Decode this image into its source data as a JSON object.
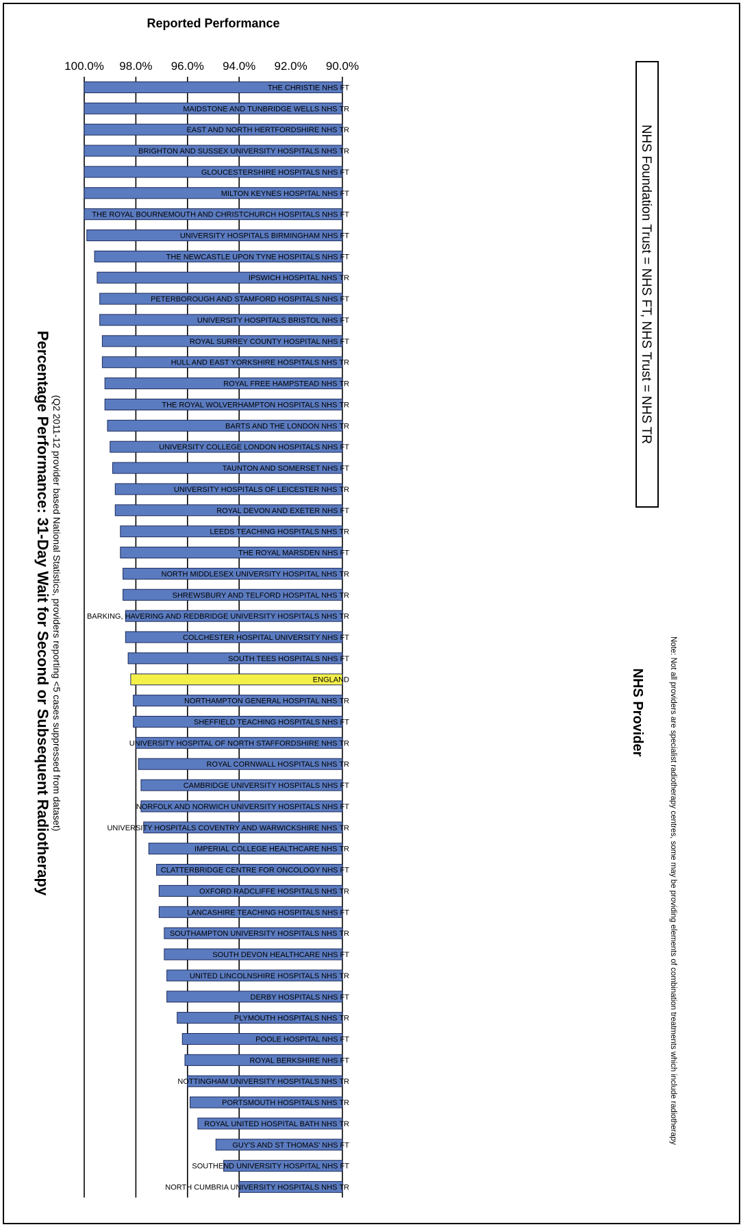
{
  "chart_data": {
    "type": "bar",
    "title": "Percentage Performance: 31-Day Wait for Second or Subsequent Radiotherapy",
    "subtitle": "(Q2 2011-12 provider based National Statistics, providers reporting <5 cases suppressed from dataset)",
    "xlabel": "NHS Provider",
    "ylabel": "Reported Performance",
    "ylim": [
      90,
      100
    ],
    "yticks": [
      "90.0%",
      "92.0%",
      "94.0%",
      "96.0%",
      "98.0%",
      "100.0%"
    ],
    "gridlines": [
      94,
      96,
      98,
      100
    ],
    "highlight_category": "ENGLAND",
    "colors": {
      "bar": "#5b7bc0",
      "highlight": "#f4f04a",
      "bar_edge": "#1b2a5a"
    },
    "categories": [
      "THE CHRISTIE NHS FT",
      "MAIDSTONE AND TUNBRIDGE WELLS NHS TR",
      "EAST AND NORTH HERTFORDSHIRE NHS TR",
      "BRIGHTON AND SUSSEX UNIVERSITY HOSPITALS NHS TR",
      "GLOUCESTERSHIRE HOSPITALS NHS FT",
      "MILTON KEYNES HOSPITAL NHS FT",
      "THE ROYAL BOURNEMOUTH AND CHRISTCHURCH HOSPITALS NHS FT",
      "UNIVERSITY HOSPITALS BIRMINGHAM NHS FT",
      "THE NEWCASTLE UPON TYNE HOSPITALS NHS FT",
      "IPSWICH HOSPITAL NHS TR",
      "PETERBOROUGH AND STAMFORD HOSPITALS NHS FT",
      "UNIVERSITY HOSPITALS BRISTOL NHS FT",
      "ROYAL SURREY COUNTY HOSPITAL NHS FT",
      "HULL AND EAST YORKSHIRE HOSPITALS NHS TR",
      "ROYAL FREE HAMPSTEAD NHS TR",
      "THE ROYAL WOLVERHAMPTON HOSPITALS NHS TR",
      "BARTS AND THE LONDON NHS TR",
      "UNIVERSITY COLLEGE LONDON HOSPITALS NHS FT",
      "TAUNTON AND SOMERSET NHS FT",
      "UNIVERSITY HOSPITALS OF LEICESTER NHS TR",
      "ROYAL DEVON AND EXETER NHS FT",
      "LEEDS TEACHING HOSPITALS NHS TR",
      "THE ROYAL MARSDEN NHS FT",
      "NORTH MIDDLESEX UNIVERSITY HOSPITAL NHS TR",
      "SHREWSBURY AND TELFORD HOSPITAL NHS TR",
      "BARKING, HAVERING AND REDBRIDGE UNIVERSITY HOSPITALS NHS TR",
      "COLCHESTER HOSPITAL UNIVERSITY NHS FT",
      "SOUTH TEES HOSPITALS NHS FT",
      "ENGLAND",
      "NORTHAMPTON GENERAL HOSPITAL NHS TR",
      "SHEFFIELD TEACHING HOSPITALS NHS FT",
      "UNIVERSITY HOSPITAL OF NORTH STAFFORDSHIRE NHS TR",
      "ROYAL CORNWALL HOSPITALS NHS TR",
      "CAMBRIDGE UNIVERSITY HOSPITALS NHS FT",
      "NORFOLK AND NORWICH UNIVERSITY HOSPITALS NHS FT",
      "UNIVERSITY HOSPITALS COVENTRY AND WARWICKSHIRE NHS TR",
      "IMPERIAL COLLEGE HEALTHCARE NHS TR",
      "CLATTERBRIDGE CENTRE FOR ONCOLOGY NHS FT",
      "OXFORD RADCLIFFE HOSPITALS NHS TR",
      "LANCASHIRE TEACHING HOSPITALS NHS FT",
      "SOUTHAMPTON UNIVERSITY HOSPITALS NHS TR",
      "SOUTH DEVON HEALTHCARE NHS FT",
      "UNITED LINCOLNSHIRE HOSPITALS NHS TR",
      "DERBY HOSPITALS NHS FT",
      "PLYMOUTH HOSPITALS NHS TR",
      "POOLE HOSPITAL NHS FT",
      "ROYAL BERKSHIRE NHS FT",
      "NOTTINGHAM UNIVERSITY HOSPITALS NHS TR",
      "PORTSMOUTH HOSPITALS NHS TR",
      "ROYAL UNITED HOSPITAL BATH NHS TR",
      "GUY'S AND ST THOMAS' NHS FT",
      "SOUTHEND UNIVERSITY HOSPITAL NHS FT",
      "NORTH CUMBRIA UNIVERSITY HOSPITALS NHS TR"
    ],
    "values": [
      100.0,
      100.0,
      100.0,
      100.0,
      100.0,
      100.0,
      100.0,
      99.9,
      99.6,
      99.5,
      99.4,
      99.4,
      99.3,
      99.3,
      99.2,
      99.2,
      99.1,
      99.0,
      98.9,
      98.8,
      98.8,
      98.6,
      98.6,
      98.5,
      98.5,
      98.4,
      98.4,
      98.3,
      98.2,
      98.1,
      98.1,
      98.0,
      97.9,
      97.8,
      97.8,
      97.7,
      97.5,
      97.2,
      97.1,
      97.1,
      96.9,
      96.9,
      96.8,
      96.8,
      96.4,
      96.2,
      96.1,
      96.0,
      95.9,
      95.6,
      94.9,
      94.6,
      94.0
    ],
    "legend_note": "NHS Foundation Trust = NHS FT, NHS Trust = NHS TR",
    "footnote": "Note: Not all providers are specialist radiotherapy centres, some may be providing elements of combination treatments which include radiotherapy"
  }
}
